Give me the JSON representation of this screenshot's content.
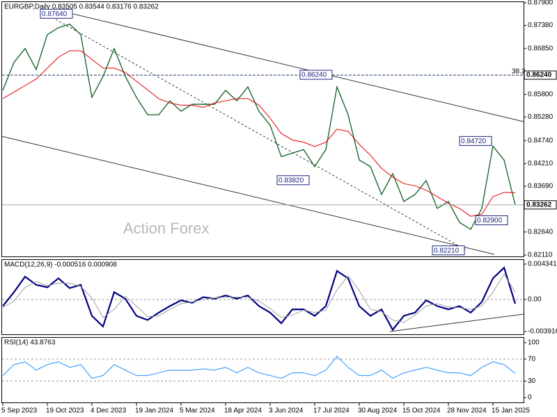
{
  "chart_data": [
    {
      "type": "line",
      "title": "EURGBP,Daily  0.83505 0.83544 0.83176 0.83262",
      "watermark": "Action Forex",
      "categories": [
        "5 Sep 2023",
        null,
        null,
        null,
        "19 Oct 2023",
        null,
        null,
        null,
        "4 Dec 2023",
        null,
        null,
        null,
        "19 Jan 2024",
        null,
        null,
        null,
        "5 Mar 2024",
        null,
        null,
        null,
        "18 Apr 2024",
        null,
        null,
        null,
        "3 Jun 2024",
        null,
        null,
        null,
        "17 Jul 2024",
        null,
        null,
        null,
        "30 Aug 2024",
        null,
        null,
        null,
        "15 Oct 2024",
        null,
        null,
        null,
        "28 Nov 2024",
        null,
        null,
        null,
        "15 Jan 2025",
        null,
        null
      ],
      "series": [
        {
          "color": "#0b5d1e",
          "values": [
            0.8589,
            0.8653,
            0.8685,
            0.8637,
            0.8717,
            0.8733,
            0.8741,
            0.8717,
            0.8573,
            0.8621,
            0.8685,
            0.8621,
            0.8573,
            0.8533,
            0.8533,
            0.8565,
            0.8541,
            0.8557,
            0.8557,
            0.8557,
            0.8589,
            0.8565,
            0.8597,
            0.8541,
            0.8509,
            0.8437,
            0.8445,
            0.8453,
            0.8414,
            0.8453,
            0.8597,
            0.8533,
            0.8429,
            0.8414,
            0.835,
            0.8398,
            0.8334,
            0.835,
            0.8382,
            0.8318,
            0.8334,
            0.8286,
            0.827,
            0.8318,
            0.8461,
            0.8429,
            0.8326
          ]
        },
        {
          "color": "#e00000",
          "values": [
            0.857,
            0.8585,
            0.86,
            0.8615,
            0.864,
            0.8665,
            0.868,
            0.868,
            0.866,
            0.864,
            0.864,
            0.863,
            0.861,
            0.859,
            0.857,
            0.856,
            0.8555,
            0.8555,
            0.855,
            0.856,
            0.8565,
            0.857,
            0.857,
            0.8555,
            0.8525,
            0.849,
            0.8475,
            0.847,
            0.846,
            0.847,
            0.85,
            0.8495,
            0.8465,
            0.844,
            0.841,
            0.839,
            0.8375,
            0.837,
            0.836,
            0.8345,
            0.833,
            0.8318,
            0.83,
            0.8305,
            0.8345,
            0.8355,
            0.8354
          ]
        }
      ],
      "annotations": [
        {
          "text": "0.87640",
          "value": 0.8764
        },
        {
          "text": "0.86240",
          "value": 0.8624
        },
        {
          "text": "0.83820",
          "value": 0.8382
        },
        {
          "text": "0.84720",
          "value": 0.8472
        },
        {
          "text": "0.82900",
          "value": 0.829
        },
        {
          "text": "0.82210",
          "value": 0.8221
        }
      ],
      "level": {
        "value": 0.8624,
        "label": "0.86240",
        "fib": "38.2"
      },
      "last": {
        "value": 0.83262,
        "label": "0.83262"
      },
      "ylim": [
        0.8211,
        0.879
      ],
      "yticks": [
        {
          "value": 0.879,
          "label": "0.87900"
        },
        {
          "value": 0.8738,
          "label": "0.87380"
        },
        {
          "value": 0.8685,
          "label": "0.86850"
        },
        {
          "value": 0.858,
          "label": "0.85800"
        },
        {
          "value": 0.8528,
          "label": "0.85280"
        },
        {
          "value": 0.8474,
          "label": "0.84740"
        },
        {
          "value": 0.8421,
          "label": "0.84210"
        },
        {
          "value": 0.8369,
          "label": "0.83690"
        },
        {
          "value": 0.8264,
          "label": "0.82640"
        },
        {
          "value": 0.8211,
          "label": "0.82110"
        }
      ]
    },
    {
      "type": "line",
      "title": "MACD(12,26,9) -0.000516 0.000908",
      "grid": true,
      "series": [
        {
          "color": "#000080",
          "values": [
            -0.0008,
            0.0009,
            0.0028,
            0.0018,
            0.0015,
            0.0026,
            0.0014,
            0.0018,
            -0.002,
            -0.0033,
            0.0009,
            0.0001,
            -0.002,
            -0.0025,
            -0.0016,
            -0.0008,
            -0.0001,
            -0.0004,
            0.0003,
            0.0001,
            0.0005,
            0.0001,
            0.0005,
            -0.0008,
            -0.0016,
            -0.0029,
            -0.0012,
            -0.0012,
            -0.002,
            -0.0008,
            0.0035,
            0.0026,
            -0.0008,
            -0.002,
            -0.0012,
            -0.0037,
            -0.002,
            -0.0016,
            -0.0001,
            -0.0008,
            -0.0012,
            -0.0008,
            -0.0016,
            -0.0003,
            0.0026,
            0.0039,
            -0.0005
          ]
        },
        {
          "color": "#a0a0a0",
          "values": [
            -0.001,
            -0.0002,
            0.0015,
            0.0022,
            0.0017,
            0.002,
            0.002,
            0.0016,
            0.0002,
            -0.0022,
            -0.0012,
            0.0004,
            -0.0008,
            -0.0021,
            -0.002,
            -0.0012,
            -0.0005,
            -0.0003,
            0.0,
            0.0002,
            0.0003,
            0.0003,
            0.0003,
            -0.0002,
            -0.0011,
            -0.0022,
            -0.0019,
            -0.0013,
            -0.0016,
            -0.0013,
            0.0012,
            0.0029,
            0.0011,
            -0.0012,
            -0.0015,
            -0.0025,
            -0.0028,
            -0.0019,
            -0.0008,
            -0.0005,
            -0.0009,
            -0.001,
            -0.0012,
            -0.0008,
            0.0009,
            0.0031,
            0.0009
          ]
        }
      ],
      "ylim": [
        -0.003916,
        0.004341
      ],
      "yticks": [
        0.004341,
        {
          "value": 0,
          "label": "0.00"
        },
        -0.003916
      ]
    },
    {
      "type": "line",
      "title": "RSI(14) 43.8763",
      "grid": true,
      "series": [
        {
          "color": "#1e90ff",
          "values": [
            40,
            60,
            65,
            50,
            60,
            65,
            55,
            60,
            35,
            40,
            60,
            50,
            40,
            40,
            45,
            50,
            50,
            50,
            52,
            50,
            55,
            45,
            55,
            45,
            40,
            35,
            45,
            45,
            40,
            50,
            75,
            55,
            40,
            40,
            50,
            35,
            45,
            50,
            55,
            50,
            45,
            45,
            40,
            55,
            65,
            60,
            44
          ]
        }
      ],
      "ylim": [
        0,
        100
      ],
      "yticks": [
        100,
        70,
        30,
        0
      ]
    }
  ]
}
